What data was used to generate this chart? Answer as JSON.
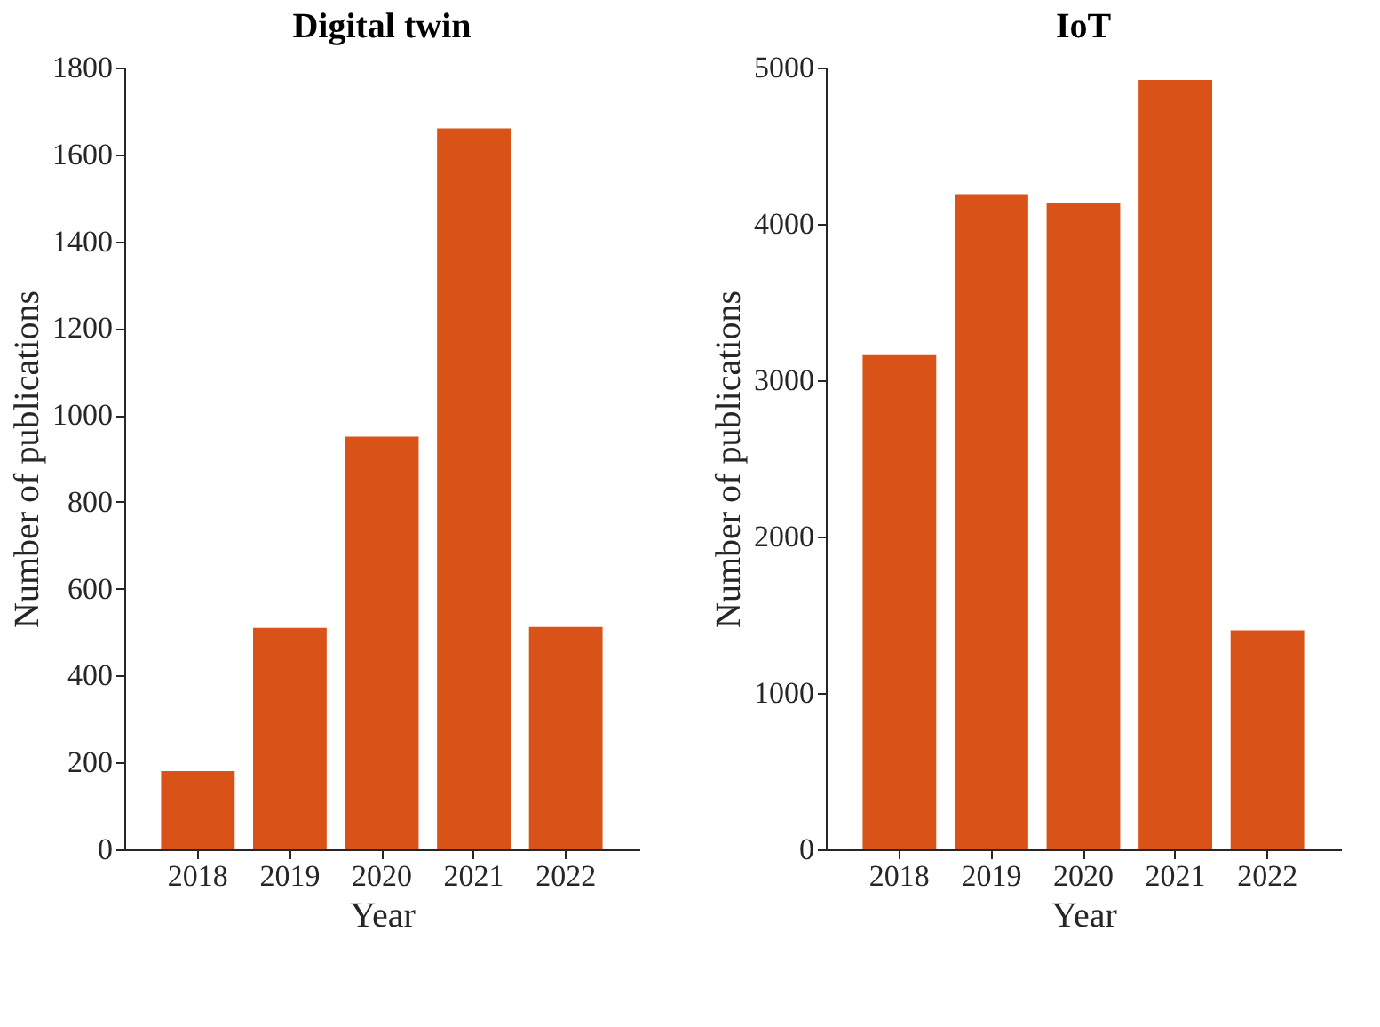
{
  "chart_data": [
    {
      "type": "bar",
      "title": "Digital twin",
      "xlabel": "Year",
      "ylabel": "Number of publications",
      "categories": [
        "2018",
        "2019",
        "2020",
        "2021",
        "2022"
      ],
      "values": [
        180,
        510,
        950,
        1660,
        512
      ],
      "color": "#d95319",
      "ylim": [
        0,
        1800
      ],
      "yticks": [
        0,
        200,
        400,
        600,
        800,
        1000,
        1200,
        1400,
        1600,
        1800
      ],
      "grid": false
    },
    {
      "type": "bar",
      "title": "IoT",
      "xlabel": "Year",
      "ylabel": "Number of publications",
      "categories": [
        "2018",
        "2019",
        "2020",
        "2021",
        "2022"
      ],
      "values": [
        3160,
        4190,
        4130,
        4920,
        1400
      ],
      "color": "#d95319",
      "ylim": [
        0,
        5000
      ],
      "yticks": [
        0,
        1000,
        2000,
        3000,
        4000,
        5000
      ],
      "grid": false
    }
  ]
}
